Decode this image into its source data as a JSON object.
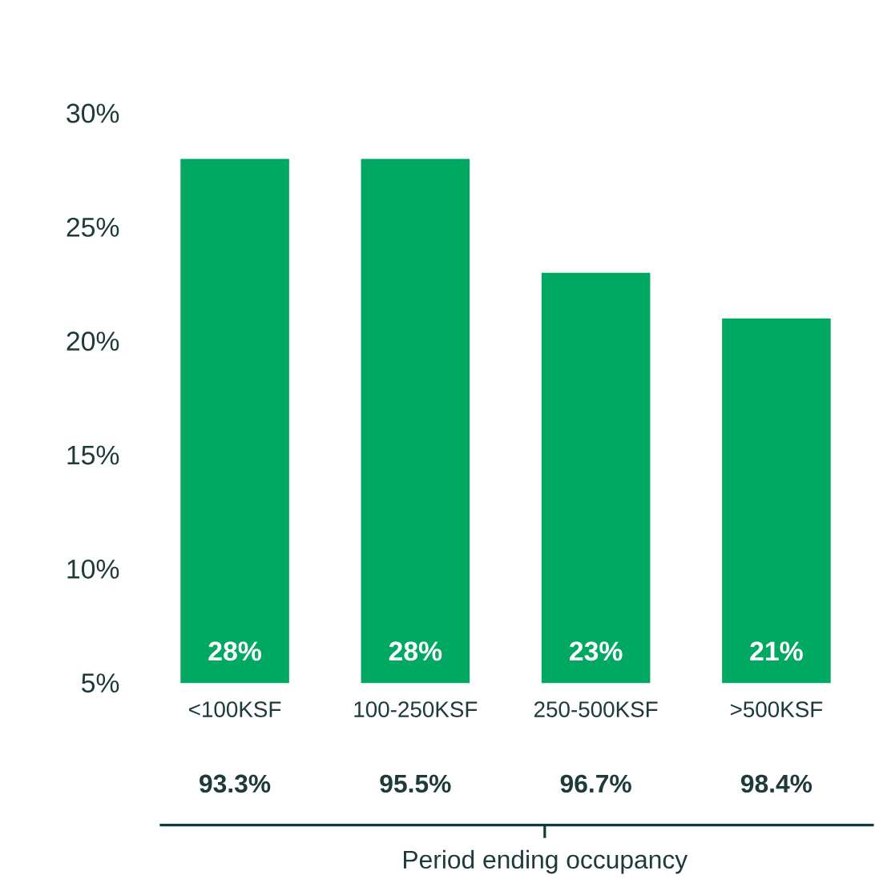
{
  "chart_data": {
    "type": "bar",
    "categories": [
      "<100KSF",
      "100-250KSF",
      "250-500KSF",
      ">500KSF"
    ],
    "values": [
      28,
      28,
      23,
      21
    ],
    "color": "#00a862",
    "value_labels": [
      "28%",
      "28%",
      "23%",
      "21%"
    ],
    "ylim": [
      5,
      30
    ],
    "yticks": [
      {
        "value": 5,
        "label": "5%"
      },
      {
        "value": 10,
        "label": "10%"
      },
      {
        "value": 15,
        "label": "15%"
      },
      {
        "value": 20,
        "label": "20%"
      },
      {
        "value": 25,
        "label": "25%"
      },
      {
        "value": 30,
        "label": "30%"
      }
    ],
    "annotations": [
      "93.3%",
      "95.5%",
      "96.7%",
      "98.4%",
      "Period ending occupancy"
    ]
  }
}
